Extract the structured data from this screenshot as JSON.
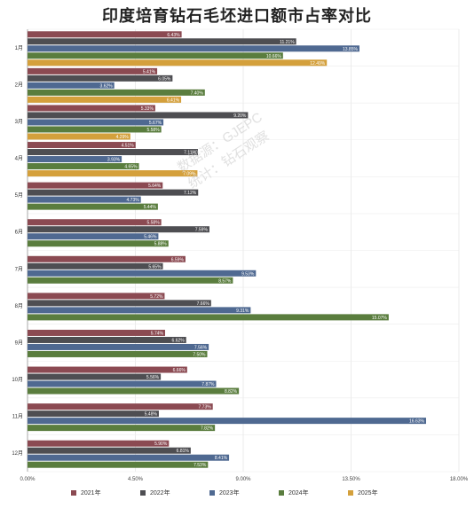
{
  "chart_data": {
    "type": "bar",
    "orientation": "horizontal",
    "title": "印度培育钻石毛坯进口额市占率对比",
    "xlim": [
      0,
      18
    ],
    "x_ticks": [
      "0.00%",
      "4.50%",
      "9.00%",
      "13.50%",
      "18.00%"
    ],
    "grid": true,
    "legend_position": "bottom",
    "categories": [
      "1月",
      "2月",
      "3月",
      "4月",
      "5月",
      "6月",
      "7月",
      "8月",
      "9月",
      "10月",
      "11月",
      "12月"
    ],
    "series": [
      {
        "name": "2021年",
        "color": "#8b4a52",
        "values": [
          6.43,
          5.41,
          5.33,
          4.51,
          5.64,
          5.58,
          6.59,
          5.72,
          5.74,
          6.66,
          7.73,
          5.9
        ]
      },
      {
        "name": "2022年",
        "color": "#4e4e52",
        "values": [
          11.21,
          6.05,
          9.2,
          7.11,
          7.12,
          7.59,
          5.65,
          7.66,
          6.62,
          5.56,
          5.48,
          6.81
        ]
      },
      {
        "name": "2023年",
        "color": "#4f6991",
        "values": [
          13.85,
          3.62,
          5.67,
          3.93,
          4.73,
          5.46,
          9.53,
          9.31,
          7.56,
          7.87,
          16.63,
          8.41
        ]
      },
      {
        "name": "2024年",
        "color": "#5a7d3e",
        "values": [
          10.66,
          7.4,
          5.58,
          4.65,
          5.44,
          5.88,
          8.57,
          15.07,
          7.5,
          8.82,
          7.82,
          7.53
        ]
      },
      {
        "name": "2025年",
        "color": "#d4a03c",
        "values": [
          12.49,
          6.41,
          4.29,
          7.09,
          null,
          null,
          null,
          null,
          null,
          null,
          null,
          null
        ]
      }
    ],
    "value_labels": [
      [
        "6.43%",
        "11.21%",
        "13.85%",
        "10.66%",
        "12.49%"
      ],
      [
        "5.41%",
        "6.05%",
        "3.62%",
        "7.40%",
        "6.41%"
      ],
      [
        "5.33%",
        "9.20%",
        "5.67%",
        "5.58%",
        "4.29%"
      ],
      [
        "4.51%",
        "7.11%",
        "3.93%",
        "4.65%",
        "7.09%"
      ],
      [
        "5.64%",
        "7.12%",
        "4.73%",
        "5.44%",
        ""
      ],
      [
        "5.58%",
        "7.59%",
        "5.46%",
        "5.88%",
        ""
      ],
      [
        "6.59%",
        "5.65%",
        "9.53%",
        "8.57%",
        ""
      ],
      [
        "5.72%",
        "7.66%",
        "9.31%",
        "15.07%",
        ""
      ],
      [
        "5.74%",
        "6.62%",
        "7.56%",
        "7.50%",
        ""
      ],
      [
        "6.66%",
        "5.56%",
        "7.87%",
        "8.82%",
        ""
      ],
      [
        "7.73%",
        "5.48%",
        "16.63%",
        "7.82%",
        ""
      ],
      [
        "5.90%",
        "6.81%",
        "8.41%",
        "7.53%",
        ""
      ]
    ]
  },
  "watermark": {
    "line1": "数据源：GJEPC",
    "line2": "统计：钻石观察"
  }
}
